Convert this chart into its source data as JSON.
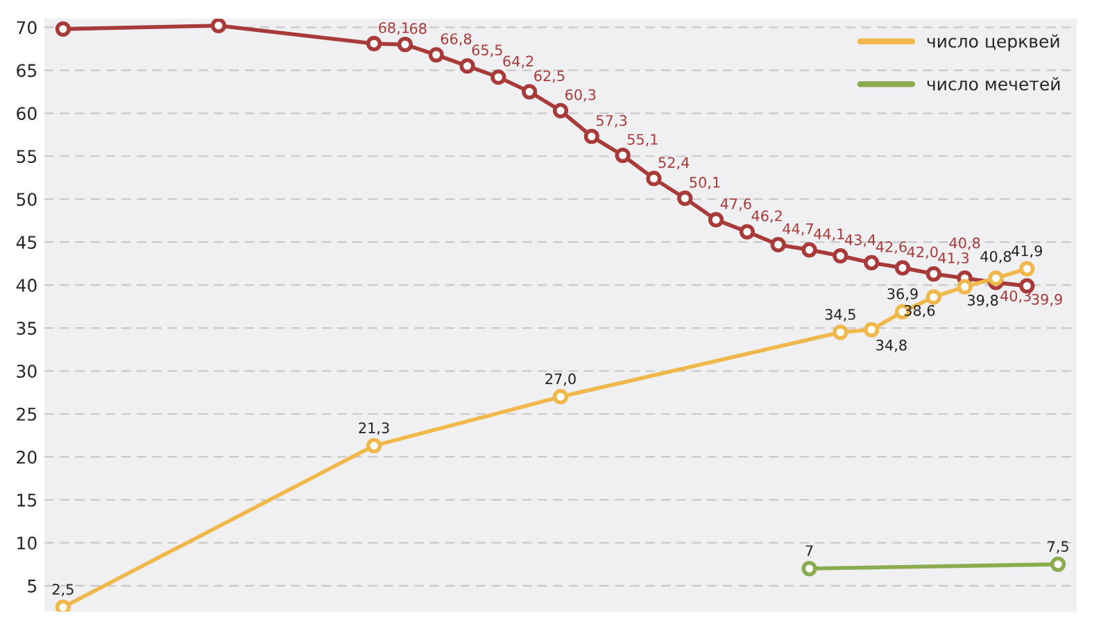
{
  "chart_data": {
    "type": "line",
    "categories": [
      null,
      null,
      null,
      null,
      null,
      null,
      null,
      null,
      null,
      null,
      null,
      null,
      null,
      null,
      null,
      null,
      null,
      null,
      null,
      null,
      null,
      null,
      null,
      null,
      null,
      null,
      null,
      null,
      null,
      null,
      null,
      null,
      null
    ],
    "series": [
      {
        "color": "#a83a3a",
        "values": [
          69.8,
          null,
          null,
          null,
          null,
          70.2,
          null,
          null,
          null,
          null,
          68.1,
          68,
          66.8,
          65.5,
          64.2,
          62.5,
          60.3,
          57.3,
          55.1,
          52.4,
          50.1,
          47.6,
          46.2,
          44.7,
          44.1,
          43.4,
          42.6,
          42.0,
          41.3,
          40.8,
          40.3,
          39.9,
          null
        ],
        "value_labels": [
          null,
          null,
          null,
          null,
          null,
          null,
          null,
          null,
          null,
          null,
          "68,1",
          "68",
          "66,8",
          "65,5",
          "64,2",
          "62,5",
          "60,3",
          "57,3",
          "55,1",
          "52,4",
          "50,1",
          "47,6",
          "46,2",
          "44,7",
          "44,1",
          "43,4",
          "42,6",
          "42,0",
          "41,3",
          "40,8",
          "40,3",
          "39,9",
          null
        ]
      },
      {
        "name": "число церквей",
        "color": "#f0b84a",
        "values": [
          2.5,
          null,
          null,
          null,
          null,
          null,
          null,
          null,
          null,
          null,
          21.3,
          null,
          null,
          null,
          null,
          null,
          27.0,
          null,
          null,
          null,
          null,
          null,
          null,
          null,
          null,
          34.5,
          34.8,
          36.9,
          38.6,
          39.8,
          40.8,
          41.9,
          null
        ],
        "value_labels": [
          "2,5",
          null,
          null,
          null,
          null,
          null,
          null,
          null,
          null,
          null,
          "21,3",
          null,
          null,
          null,
          null,
          null,
          "27,0",
          null,
          null,
          null,
          null,
          null,
          null,
          null,
          null,
          "34,5",
          "34,8",
          "36,9",
          "38,6",
          "39,8",
          "40,8",
          "41,9",
          null
        ]
      },
      {
        "name": "число мечетей",
        "color": "#8aab4e",
        "values": [
          null,
          null,
          null,
          null,
          null,
          null,
          null,
          null,
          null,
          null,
          null,
          null,
          null,
          null,
          null,
          null,
          null,
          null,
          null,
          null,
          null,
          null,
          null,
          null,
          7,
          null,
          null,
          null,
          null,
          null,
          null,
          null,
          7.5
        ],
        "value_labels": [
          null,
          null,
          null,
          null,
          null,
          null,
          null,
          null,
          null,
          null,
          null,
          null,
          null,
          null,
          null,
          null,
          null,
          null,
          null,
          null,
          null,
          null,
          null,
          null,
          "7",
          null,
          null,
          null,
          null,
          null,
          null,
          null,
          "7,5"
        ]
      }
    ],
    "ylim": [
      2,
      71
    ],
    "yticks": [
      5,
      10,
      15,
      20,
      25,
      30,
      35,
      40,
      45,
      50,
      55,
      60,
      65,
      70
    ],
    "tick_labels": "y",
    "grid": "y",
    "legend": "top right",
    "marker": "circle",
    "line_style": "solid"
  }
}
